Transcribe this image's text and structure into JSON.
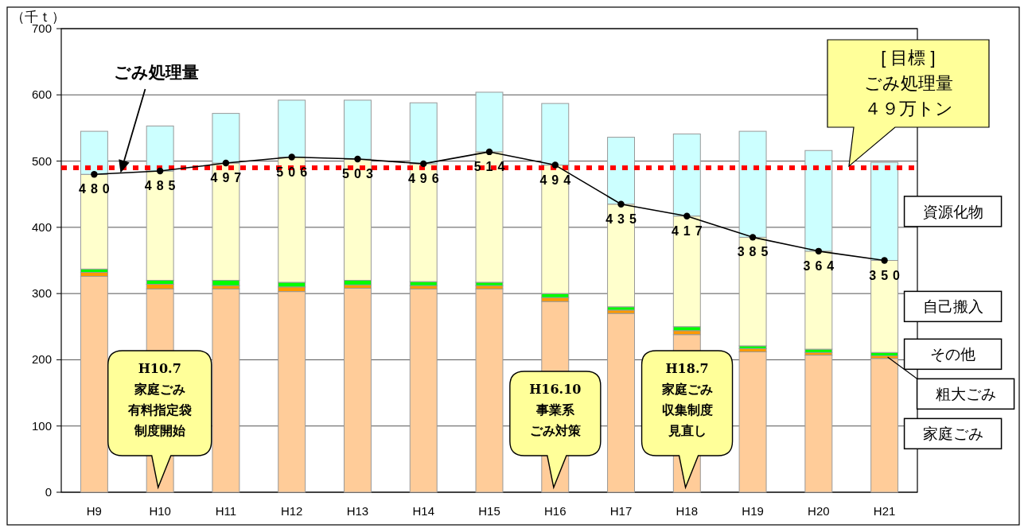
{
  "chart_data": {
    "type": "bar",
    "stacked": true,
    "ylabel": "（千ｔ）",
    "categories": [
      "H9",
      "H10",
      "H11",
      "H12",
      "H13",
      "H14",
      "H15",
      "H16",
      "H17",
      "H18",
      "H19",
      "H20",
      "H21"
    ],
    "series": [
      {
        "name": "家庭ごみ",
        "color": "#ffcc99",
        "values": [
          326,
          307,
          307,
          303,
          308,
          307,
          307,
          288,
          270,
          238,
          212,
          207,
          202
        ]
      },
      {
        "name": "粗大ごみ",
        "color": "#ff9900",
        "values": [
          6,
          7,
          5,
          7,
          5,
          5,
          5,
          6,
          5,
          6,
          5,
          4,
          4
        ]
      },
      {
        "name": "その他",
        "color": "#00ff00",
        "values": [
          5,
          6,
          8,
          7,
          7,
          6,
          5,
          6,
          5,
          6,
          4,
          5,
          5
        ]
      },
      {
        "name": "自己搬入",
        "color": "#ffffcc",
        "values": [
          143,
          165,
          177,
          189,
          183,
          178,
          197,
          194,
          155,
          167,
          164,
          148,
          139
        ]
      },
      {
        "name": "資源化物",
        "color": "#ccffff",
        "values": [
          65,
          68,
          75,
          86,
          89,
          92,
          90,
          93,
          101,
          124,
          160,
          152,
          148
        ]
      },
      {
        "name": "ごみ処理量",
        "type": "line",
        "color": "#000000",
        "marker": "circle",
        "values": [
          480,
          485,
          497,
          506,
          503,
          496,
          514,
          494,
          435,
          417,
          385,
          364,
          350
        ],
        "value_labels": [
          "480",
          "485",
          "497",
          "506",
          "503",
          "496",
          "514",
          "494",
          "435",
          "417",
          "385",
          "364",
          "350"
        ]
      }
    ],
    "ylim": [
      0,
      700
    ],
    "yticks": [
      0,
      100,
      200,
      300,
      400,
      500,
      600,
      700
    ],
    "grid": "y",
    "ref_lines": [
      {
        "axis": "y",
        "value": 490,
        "label": "[ 目標 ]\nごみ処理量４９万トン",
        "color": "#ff0000",
        "line_style": "dotted"
      }
    ],
    "annotations": [
      "H10.7\n家庭ごみ有料指定袋制度開始",
      "H16.10\n事業系ごみ対策",
      "H18.7\n家庭ごみ収集制度見直し"
    ]
  }
}
